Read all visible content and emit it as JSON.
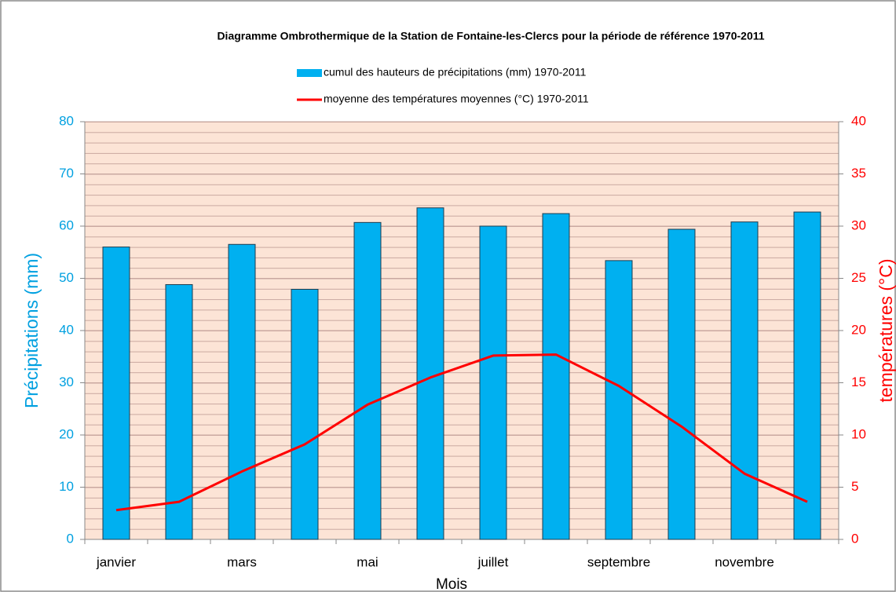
{
  "chart_data": {
    "type": "bar",
    "title": "Diagramme Ombrothermique de la Station de Fontaine-les-Clercs pour la période de référence 1970-2011",
    "x_label": "Mois",
    "y_label": "Précipitations (mm)",
    "y2_label": "températures (°C)",
    "categories": [
      "janvier",
      null,
      "mars",
      null,
      "mai",
      null,
      "juillet",
      null,
      "septembre",
      null,
      "novembre",
      null
    ],
    "series": [
      {
        "name": "cumul des hauteurs de précipitations (mm) 1970-2011",
        "type": "bar",
        "color": "#00b0f0",
        "values": [
          56,
          48.8,
          56.5,
          47.9,
          60.7,
          63.5,
          60,
          62.4,
          53.4,
          59.4,
          60.8,
          62.7
        ]
      },
      {
        "name": "moyenne des températures moyennes (°C) 1970-2011",
        "type": "line",
        "axis": "y2",
        "color": "#ff0000",
        "values": [
          2.8,
          3.6,
          6.5,
          9.1,
          12.9,
          15.5,
          17.6,
          17.7,
          14.7,
          10.8,
          6.3,
          3.6
        ]
      }
    ],
    "ylim": [
      0,
      80
    ],
    "yticks": [
      0,
      10,
      20,
      30,
      40,
      50,
      60,
      70,
      80
    ],
    "y2lim": [
      0,
      40
    ],
    "y2ticks": [
      0,
      5,
      10,
      15,
      20,
      25,
      30,
      35,
      40
    ],
    "grid": true,
    "legend": "top"
  }
}
